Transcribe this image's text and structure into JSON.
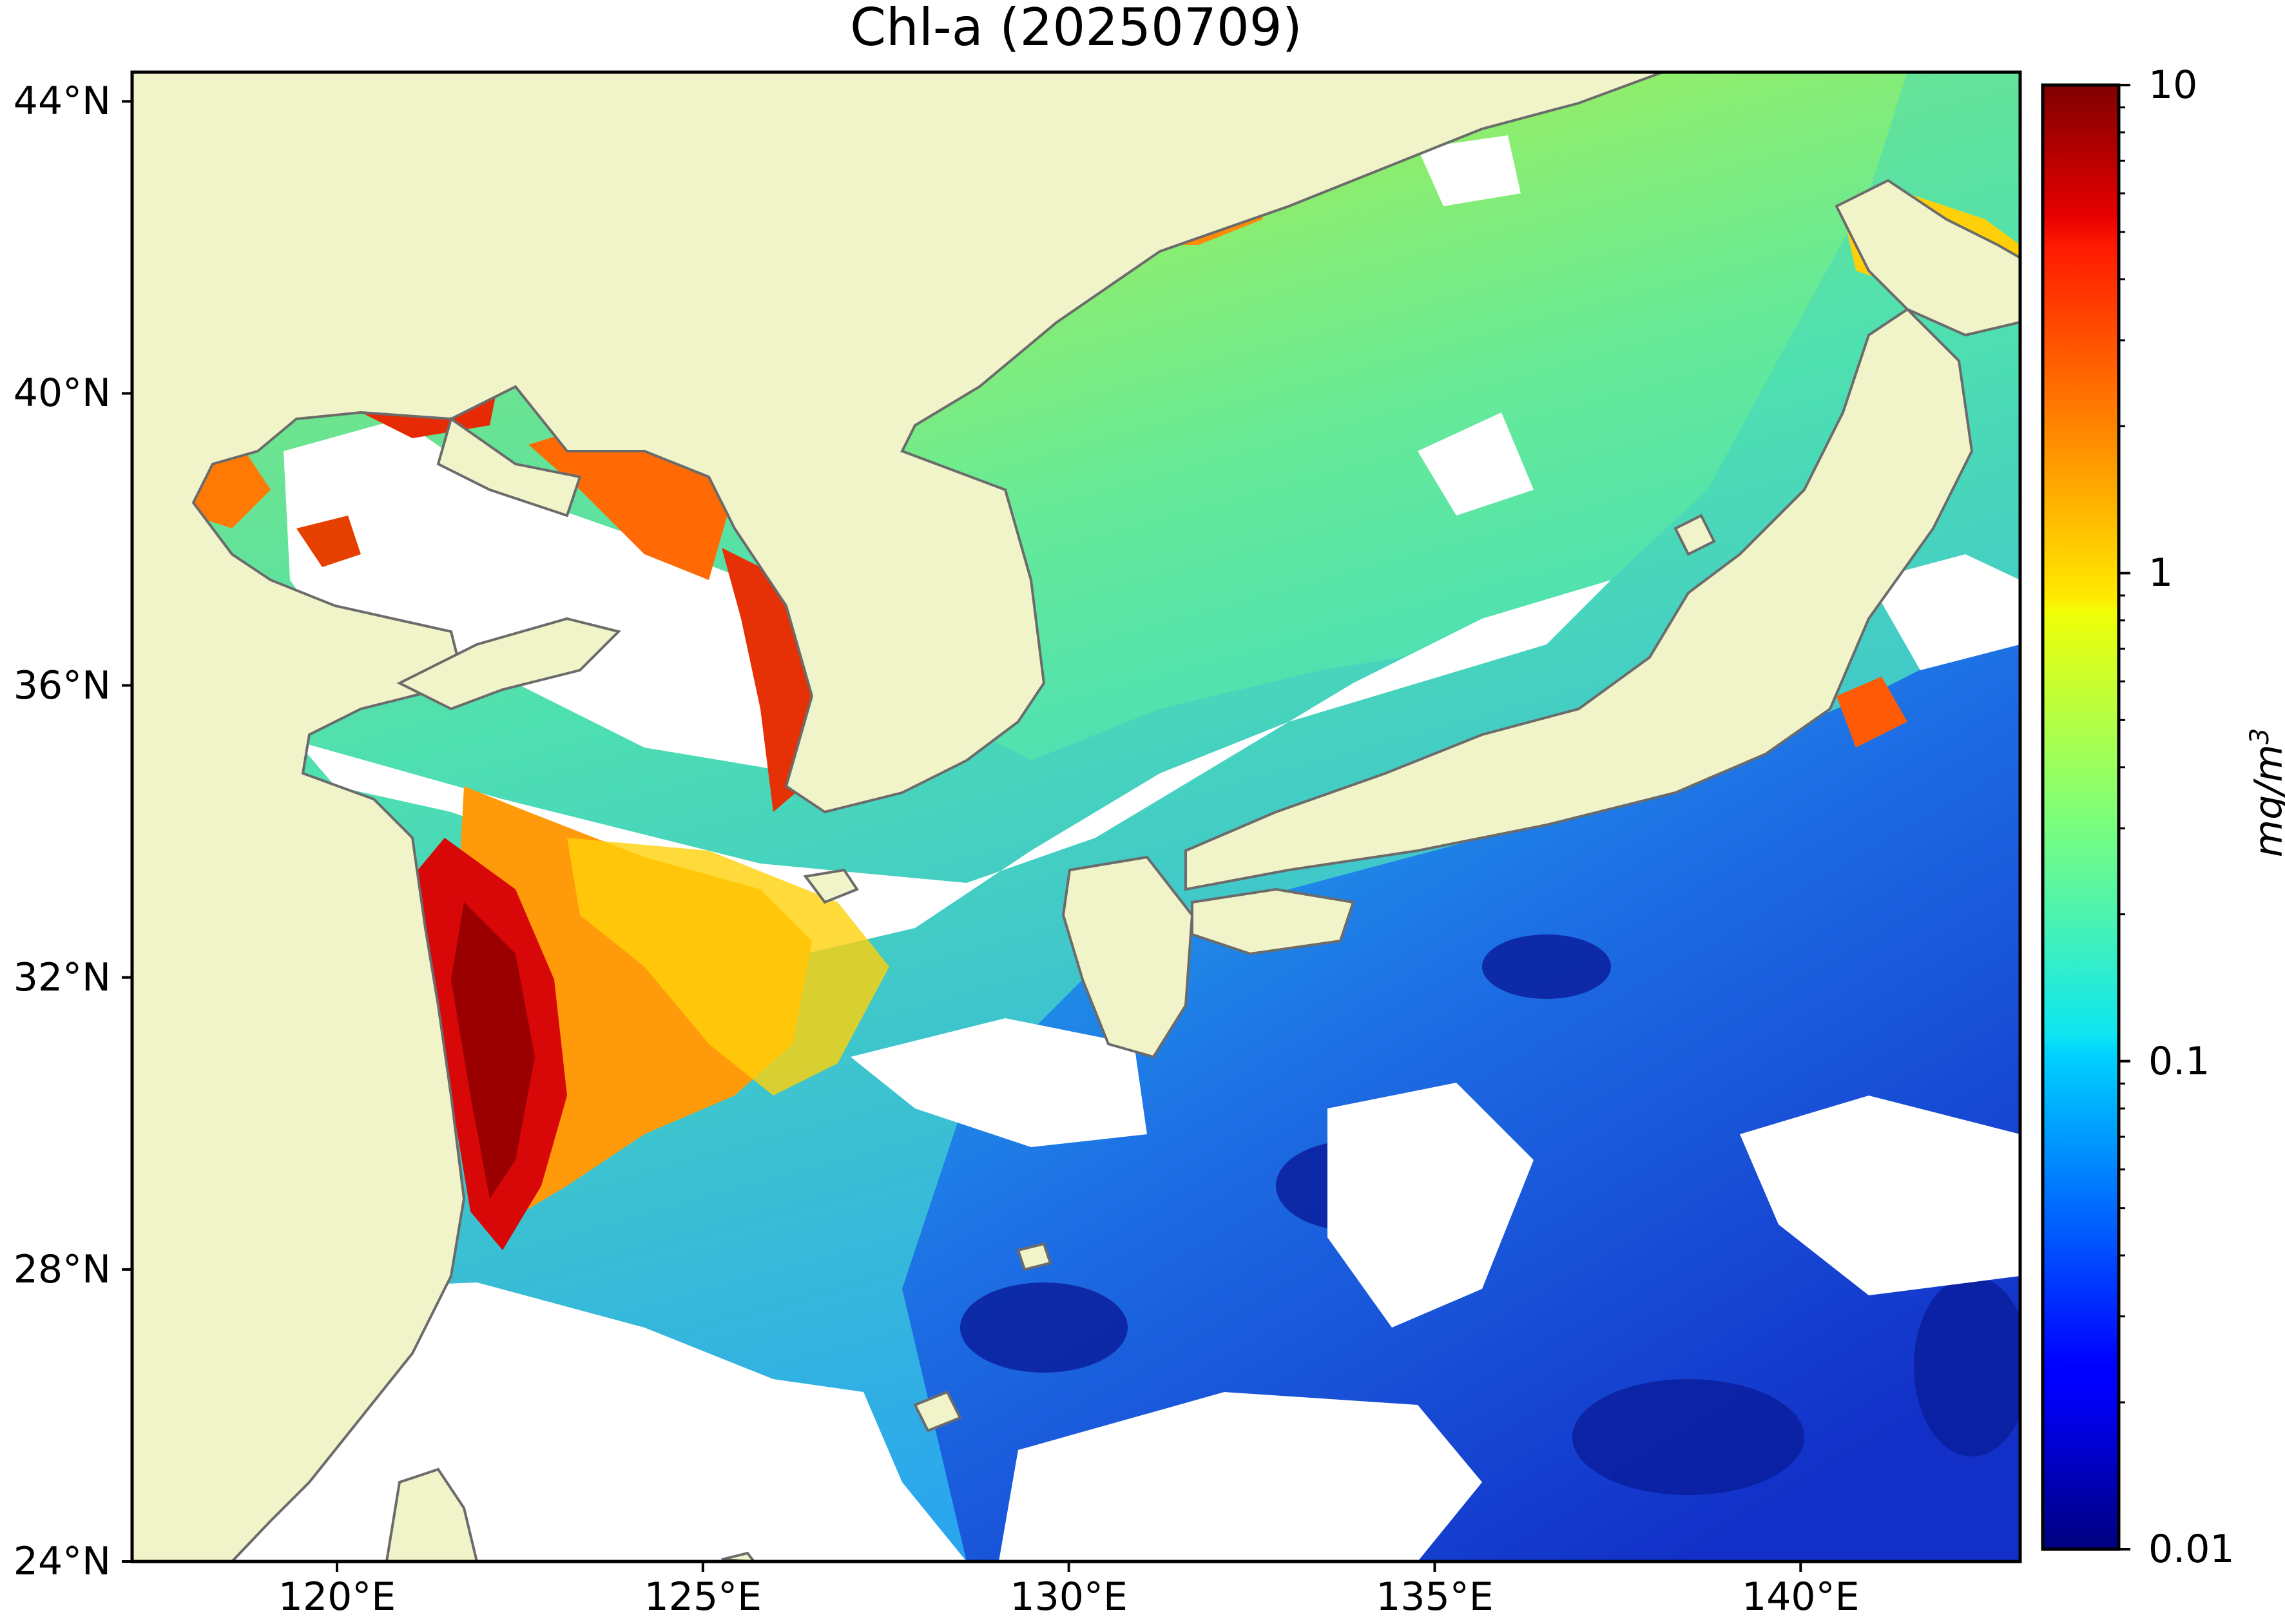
{
  "title": "Chl-a (20250709)",
  "colors": {
    "land": "#f1f4c8",
    "coastline": "#6b6b6b",
    "no_data": "#ffffff",
    "frame": "#000000"
  },
  "map": {
    "projection": "plate-carree",
    "lon_range": [
      117.2,
      143.0
    ],
    "lat_range": [
      24.0,
      44.4
    ],
    "lat_ticks": [
      {
        "value": 24,
        "label": "24°N"
      },
      {
        "value": 28,
        "label": "28°N"
      },
      {
        "value": 32,
        "label": "32°N"
      },
      {
        "value": 36,
        "label": "36°N"
      },
      {
        "value": 40,
        "label": "40°N"
      },
      {
        "value": 44,
        "label": "44°N"
      }
    ],
    "lon_ticks": [
      {
        "value": 120,
        "label": "120°E"
      },
      {
        "value": 125,
        "label": "125°E"
      },
      {
        "value": 130,
        "label": "130°E"
      },
      {
        "value": 135,
        "label": "135°E"
      },
      {
        "value": 140,
        "label": "140°E"
      }
    ]
  },
  "colorbar": {
    "scale": "log",
    "range": [
      0.01,
      10
    ],
    "colormap": "jet",
    "ticks": [
      {
        "value": 10,
        "label": "10"
      },
      {
        "value": 1,
        "label": "1"
      },
      {
        "value": 0.1,
        "label": "0.1"
      },
      {
        "value": 0.01,
        "label": "0.01"
      }
    ],
    "units": "mg/m",
    "units_exponent": "3"
  }
}
